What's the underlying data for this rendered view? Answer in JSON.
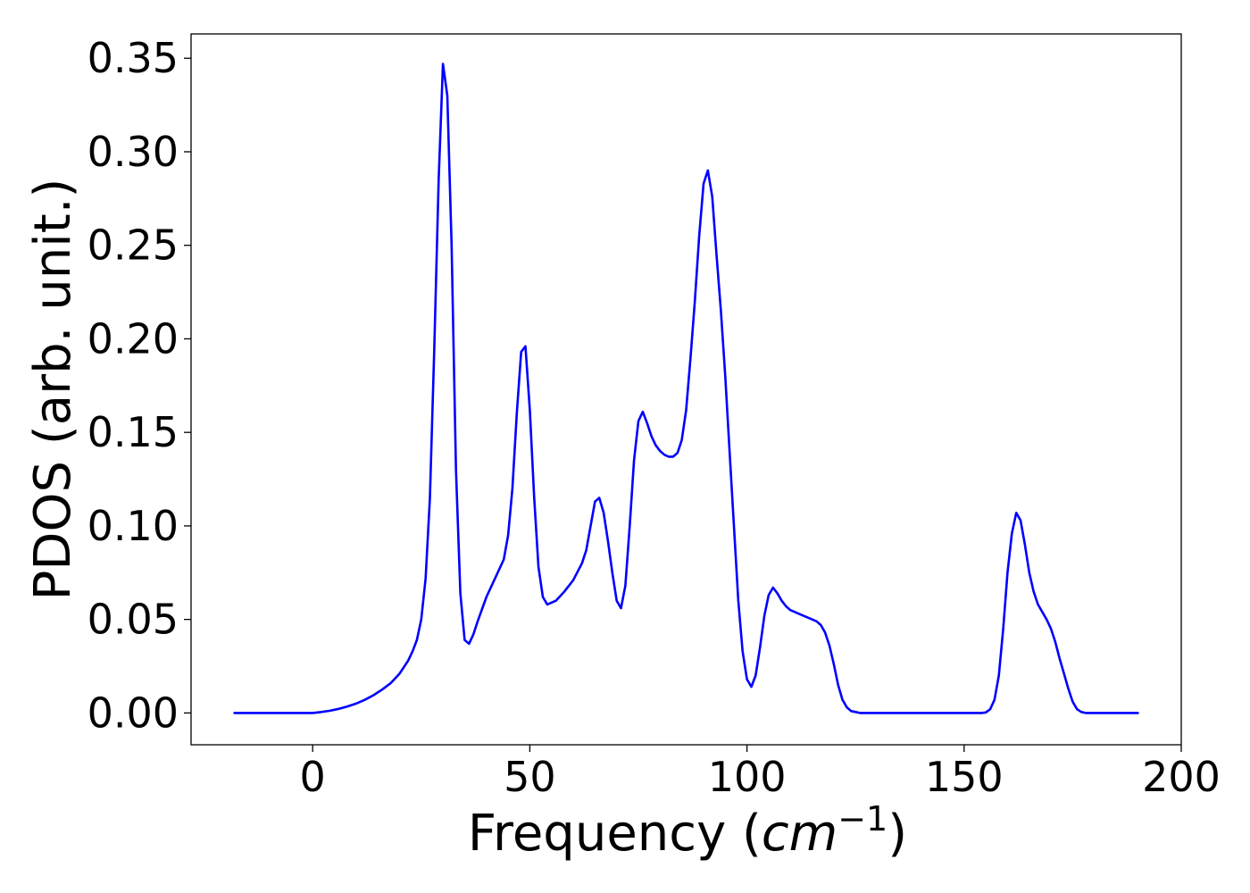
{
  "chart_data": {
    "type": "line",
    "title": "",
    "xlabel": "Frequency (",
    "xlabel_math_base": "cm",
    "xlabel_math_exp": "−1",
    "xlabel_close": ")",
    "ylabel": "PDOS (arb. unit.)",
    "xlim": [
      -28,
      200
    ],
    "ylim": [
      -0.017,
      0.363
    ],
    "xticks": [
      0,
      50,
      100,
      150,
      200
    ],
    "xtick_labels": [
      "0",
      "50",
      "100",
      "150",
      "200"
    ],
    "yticks": [
      0.0,
      0.05,
      0.1,
      0.15,
      0.2,
      0.25,
      0.3,
      0.35
    ],
    "ytick_labels": [
      "0.00",
      "0.05",
      "0.10",
      "0.15",
      "0.20",
      "0.25",
      "0.30",
      "0.35"
    ],
    "grid": false,
    "legend": "none",
    "series": [
      {
        "color": "#0000ff",
        "x": [
          -18,
          -10,
          0,
          2,
          4,
          6,
          8,
          10,
          12,
          14,
          16,
          18,
          20,
          21,
          22,
          23,
          24,
          25,
          26,
          27,
          28,
          29,
          30,
          31,
          32,
          33,
          34,
          35,
          36,
          37,
          38,
          40,
          42,
          44,
          45,
          46,
          47,
          48,
          49,
          50,
          51,
          52,
          53,
          54,
          56,
          58,
          60,
          62,
          63,
          64,
          65,
          66,
          67,
          68,
          69,
          70,
          71,
          72,
          73,
          74,
          75,
          76,
          77,
          78,
          79,
          80,
          81,
          82,
          83,
          84,
          85,
          86,
          87,
          88,
          89,
          90,
          91,
          92,
          93,
          94,
          95,
          96,
          97,
          98,
          99,
          100,
          101,
          102,
          103,
          104,
          105,
          106,
          107,
          108,
          109,
          110,
          112,
          114,
          116,
          117,
          118,
          119,
          120,
          121,
          122,
          123,
          124,
          125,
          126,
          130,
          140,
          150,
          154,
          155,
          156,
          157,
          158,
          159,
          160,
          161,
          162,
          163,
          164,
          165,
          166,
          167,
          168,
          169,
          170,
          171,
          172,
          173,
          174,
          175,
          176,
          177,
          178,
          180,
          190
        ],
        "y": [
          0.0,
          0.0,
          0.0,
          0.0005,
          0.0012,
          0.0022,
          0.0035,
          0.005,
          0.007,
          0.0095,
          0.0125,
          0.016,
          0.021,
          0.0245,
          0.028,
          0.033,
          0.039,
          0.05,
          0.072,
          0.115,
          0.195,
          0.285,
          0.347,
          0.33,
          0.25,
          0.13,
          0.064,
          0.039,
          0.037,
          0.042,
          0.049,
          0.062,
          0.072,
          0.082,
          0.095,
          0.12,
          0.16,
          0.193,
          0.196,
          0.162,
          0.115,
          0.078,
          0.062,
          0.058,
          0.06,
          0.065,
          0.071,
          0.08,
          0.087,
          0.1,
          0.113,
          0.115,
          0.107,
          0.092,
          0.075,
          0.06,
          0.056,
          0.068,
          0.1,
          0.135,
          0.156,
          0.161,
          0.155,
          0.148,
          0.143,
          0.14,
          0.138,
          0.137,
          0.137,
          0.139,
          0.146,
          0.162,
          0.19,
          0.22,
          0.255,
          0.283,
          0.29,
          0.276,
          0.245,
          0.215,
          0.18,
          0.14,
          0.1,
          0.06,
          0.033,
          0.018,
          0.014,
          0.02,
          0.035,
          0.052,
          0.063,
          0.067,
          0.064,
          0.06,
          0.057,
          0.055,
          0.053,
          0.051,
          0.049,
          0.047,
          0.043,
          0.036,
          0.026,
          0.015,
          0.007,
          0.003,
          0.001,
          0.0005,
          0.0,
          0.0,
          0.0,
          0.0,
          0.0,
          0.0003,
          0.002,
          0.007,
          0.02,
          0.045,
          0.075,
          0.096,
          0.107,
          0.103,
          0.09,
          0.075,
          0.065,
          0.058,
          0.054,
          0.05,
          0.045,
          0.038,
          0.029,
          0.021,
          0.013,
          0.006,
          0.002,
          0.0005,
          0.0,
          0.0,
          0.0
        ]
      }
    ]
  }
}
